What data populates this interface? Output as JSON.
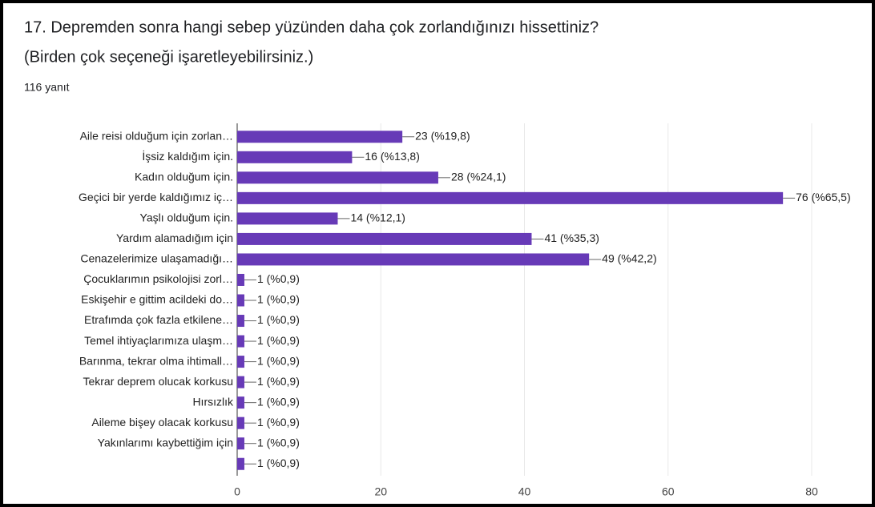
{
  "chart_data": {
    "type": "bar",
    "orientation": "horizontal",
    "title": "17. Depremden sonra hangi sebep yüzünden daha çok zorlandığınızı hissettiniz?",
    "subtitle": "(Birden çok seçeneği işaretleyebilirsiniz.)",
    "note": "116 yanıt",
    "categories": [
      "Aile reisi olduğum için zorlan…",
      "İşsiz kaldığım için.",
      "Kadın olduğum için.",
      "Geçici bir yerde kaldığımız iç…",
      "Yaşlı olduğum için.",
      "Yardım alamadığım için",
      "Cenazelerimize ulaşamadığı…",
      "Çocuklarımın psikolojisi zorl…",
      "Eskişehir e gittim acildeki do…",
      "Etrafımda çok fazla etkilene…",
      "Temel ihtiyaçlarımıza ulaşm…",
      "Barınma, tekrar olma ihtimall…",
      "Tekrar deprem olucak korkusu",
      "Hırsızlık",
      "Aileme bişey olacak korkusu",
      "Yakınlarımı kaybettiğim için",
      null
    ],
    "values": [
      23,
      16,
      28,
      76,
      14,
      41,
      49,
      1,
      1,
      1,
      1,
      1,
      1,
      1,
      1,
      1,
      1
    ],
    "value_labels": [
      "23 (%19,8)",
      "16 (%13,8)",
      "28 (%24,1)",
      "76 (%65,5)",
      "14 (%12,1)",
      "41 (%35,3)",
      "49 (%42,2)",
      "1 (%0,9)",
      "1 (%0,9)",
      "1 (%0,9)",
      "1 (%0,9)",
      "1 (%0,9)",
      "1 (%0,9)",
      "1 (%0,9)",
      "1 (%0,9)",
      "1 (%0,9)",
      "1 (%0,9)"
    ],
    "color": "#673ab7",
    "xlim": [
      0,
      80
    ],
    "xticks": [
      0,
      20,
      40,
      60,
      80
    ],
    "grid": true
  }
}
